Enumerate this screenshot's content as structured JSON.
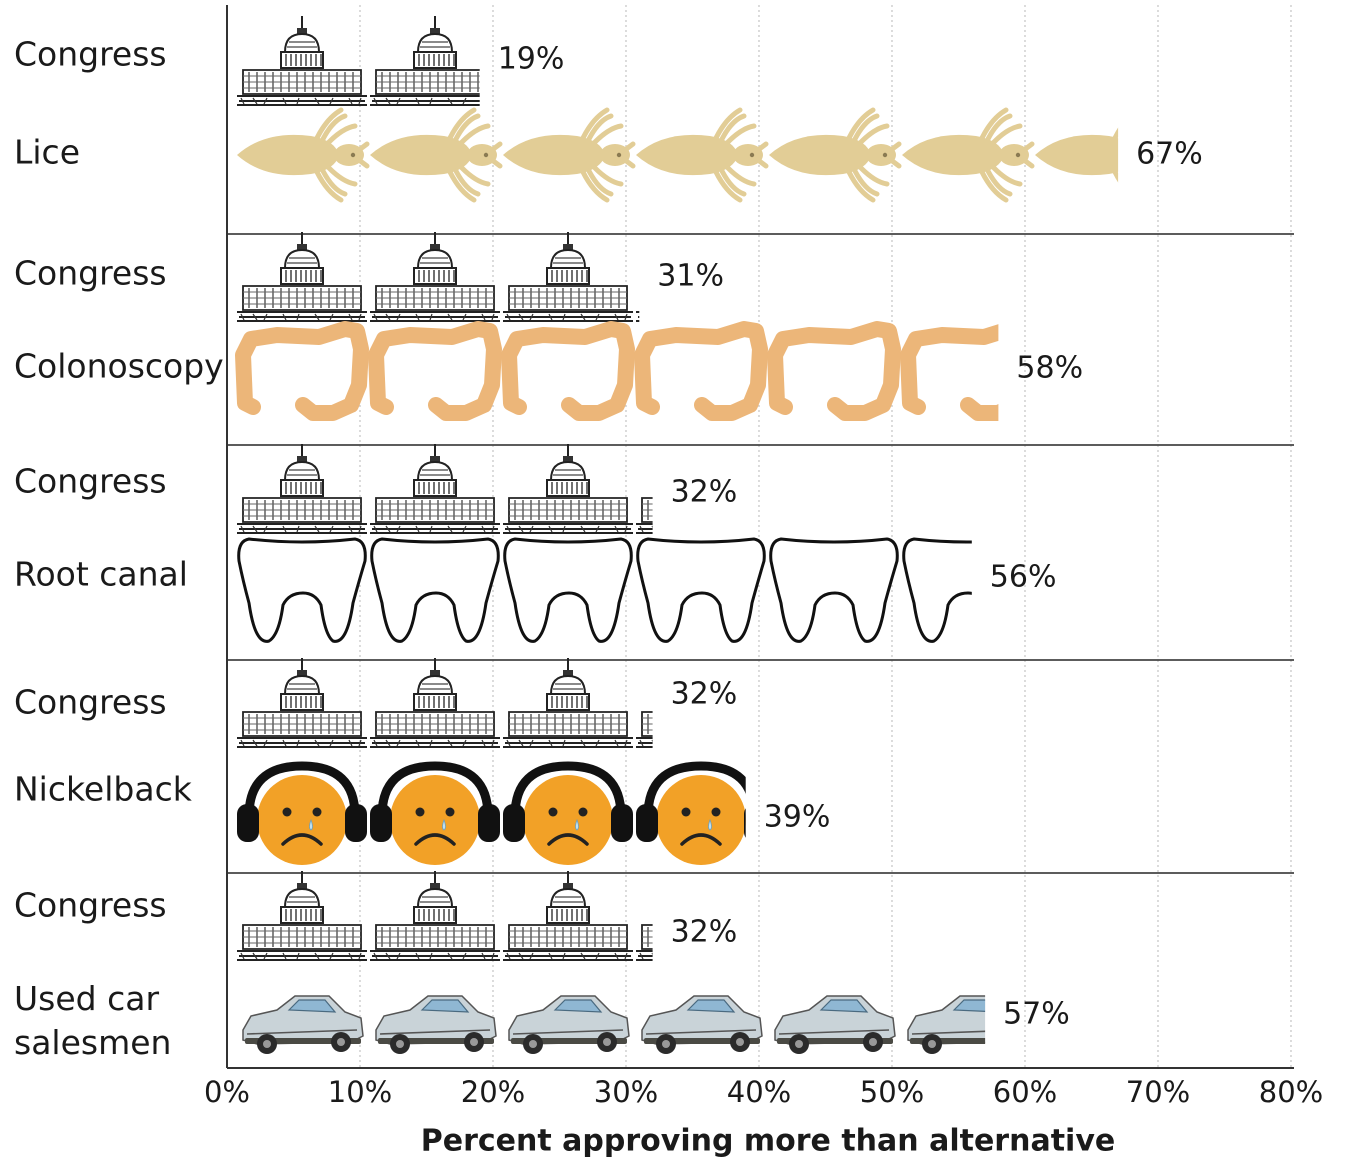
{
  "chart_data": {
    "type": "bar",
    "xlabel": "Percent approving more than alternative",
    "ylabel": "",
    "xlim": [
      0,
      80
    ],
    "ticks": [
      "0%",
      "10%",
      "20%",
      "30%",
      "40%",
      "50%",
      "60%",
      "70%",
      "80%"
    ],
    "grid": true,
    "groups": [
      {
        "rows": [
          {
            "label": "Congress",
            "value": 19,
            "value_label": "19%",
            "icon": "capitol-icon"
          },
          {
            "label": "Lice",
            "value": 67,
            "value_label": "67%",
            "icon": "louse-icon",
            "color": "#e2cd96"
          }
        ]
      },
      {
        "rows": [
          {
            "label": "Congress",
            "value": 31,
            "value_label": "31%",
            "icon": "capitol-icon"
          },
          {
            "label": "Colonoscopy",
            "value": 58,
            "value_label": "58%",
            "icon": "colon-icon",
            "color": "#ecb679"
          }
        ]
      },
      {
        "rows": [
          {
            "label": "Congress",
            "value": 32,
            "value_label": "32%",
            "icon": "capitol-icon"
          },
          {
            "label": "Root canal",
            "value": 56,
            "value_label": "56%",
            "icon": "tooth-icon"
          }
        ]
      },
      {
        "rows": [
          {
            "label": "Congress",
            "value": 32,
            "value_label": "32%",
            "icon": "capitol-icon"
          },
          {
            "label": "Nickelback",
            "value": 39,
            "value_label": "39%",
            "icon": "sad-face-headphones-icon",
            "color": "#f2a127"
          }
        ]
      },
      {
        "rows": [
          {
            "label": "Congress",
            "value": 32,
            "value_label": "32%",
            "icon": "capitol-icon"
          },
          {
            "label": "Used car salesmen",
            "label_lines": [
              "Used car",
              "salesmen"
            ],
            "value": 57,
            "value_label": "57%",
            "icon": "car-icon"
          }
        ]
      }
    ]
  }
}
